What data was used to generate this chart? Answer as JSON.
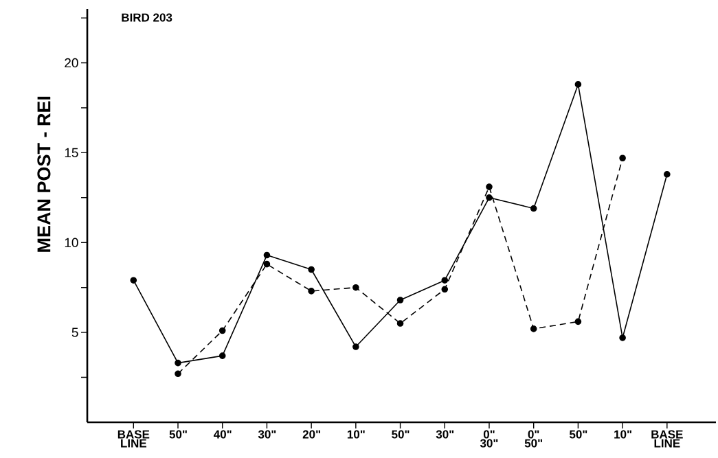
{
  "chart_data": {
    "type": "line",
    "title": "BIRD 203",
    "ylabel": "MEAN POST - REI",
    "categories": [
      "BASE LINE",
      "50\"",
      "40\"",
      "30\"",
      "20\"",
      "10\"",
      "50\"",
      "30\"",
      "0\" 30\"",
      "0\" 50\"",
      "50\"",
      "10\"",
      "BASE LINE"
    ],
    "series": [
      {
        "color": "#000000",
        "line_style": "solid",
        "marker": "circle",
        "values": [
          7.9,
          3.3,
          3.7,
          9.3,
          8.5,
          4.2,
          6.8,
          7.9,
          12.5,
          11.9,
          18.8,
          4.7,
          13.8
        ]
      },
      {
        "color": "#000000",
        "line_style": "dashed",
        "marker": "circle",
        "values": [
          null,
          2.7,
          5.1,
          8.8,
          7.3,
          7.5,
          5.5,
          7.4,
          13.1,
          5.2,
          5.6,
          14.7,
          null
        ]
      }
    ],
    "ylim": [
      0,
      23
    ],
    "yticks": [
      {
        "value": 2.5,
        "label": null
      },
      5,
      {
        "value": 7.5,
        "label": null
      },
      10,
      {
        "value": 12.5,
        "label": null
      },
      15,
      {
        "value": 17.5,
        "label": null
      },
      20,
      {
        "value": 22.5,
        "label": null
      }
    ],
    "grid": false
  }
}
